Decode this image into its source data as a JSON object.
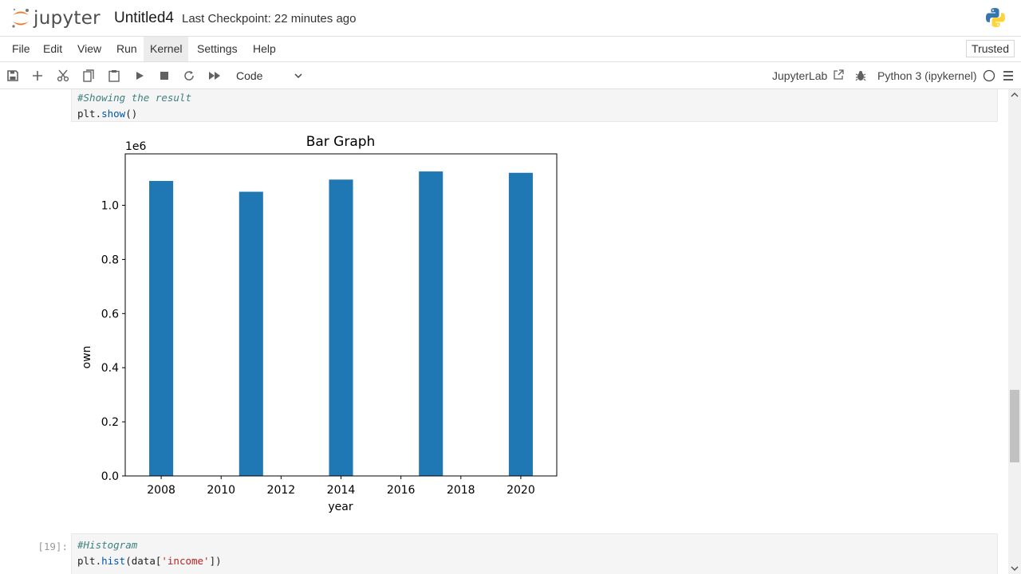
{
  "app": {
    "logo_text": "jupyter",
    "notebook_title": "Untitled4",
    "checkpoint": "Last Checkpoint: 22 minutes ago"
  },
  "menu": {
    "items": [
      {
        "label": "File"
      },
      {
        "label": "Edit"
      },
      {
        "label": "View"
      },
      {
        "label": "Run"
      },
      {
        "label": "Kernel"
      },
      {
        "label": "Settings"
      },
      {
        "label": "Help"
      }
    ],
    "active": "Kernel",
    "trusted": "Trusted"
  },
  "toolbar": {
    "icons": [
      "save-icon",
      "add-cell-icon",
      "cut-icon",
      "copy-icon",
      "paste-icon",
      "run-icon",
      "stop-icon",
      "restart-icon",
      "fast-forward-icon"
    ],
    "cell_type": "Code",
    "jupyterlab_link": "JupyterLab",
    "kernel": "Python 3 (ipykernel)"
  },
  "cells": {
    "cell1": {
      "line1": "#Showing the result",
      "line2_obj": "plt",
      "line2_fn": "show",
      "line2_rest": "()"
    },
    "cell2": {
      "prompt": "[19]:",
      "line1": "#Histogram",
      "line2_obj": "plt",
      "line2_fn": "hist",
      "line2_a": "(data[",
      "line2_str": "'income'",
      "line2_b": "])"
    }
  },
  "chart_data": {
    "type": "bar",
    "title": "Bar Graph",
    "xlabel": "year",
    "ylabel": "own",
    "y_multiplier_label": "1e6",
    "x": [
      2008,
      2011,
      2014,
      2017,
      2020
    ],
    "values": [
      1090000,
      1050000,
      1095000,
      1125000,
      1120000
    ],
    "xlim": [
      2006.8,
      2021.2
    ],
    "ylim": [
      0,
      1190000
    ],
    "xticks": [
      2008,
      2010,
      2012,
      2014,
      2016,
      2018,
      2020
    ],
    "yticks": [
      0,
      200000,
      400000,
      600000,
      800000,
      1000000
    ],
    "ytick_labels": [
      "0.0",
      "0.2",
      "0.4",
      "0.6",
      "0.8",
      "1.0"
    ],
    "bar_width": 0.8,
    "color": "#1f77b4"
  },
  "colors": {
    "accent_orange": "#f37726",
    "bar": "#1f77b4",
    "code_bg": "#f5f5f5"
  }
}
